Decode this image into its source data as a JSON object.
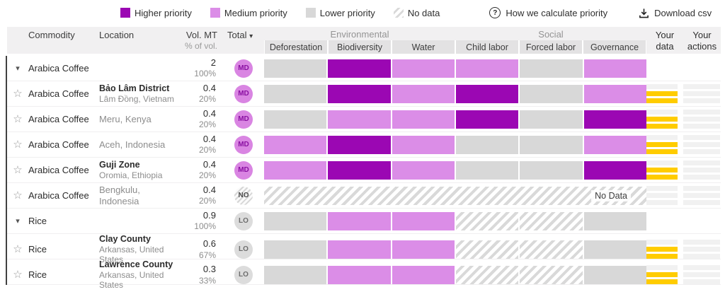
{
  "palette": {
    "higher": "#9b07b3",
    "medium": "#db8de7",
    "lower": "#d8d8d8",
    "your_data_yellow": "#ffcc00"
  },
  "legend": {
    "items": [
      {
        "type": "higher",
        "label": "Higher priority"
      },
      {
        "type": "medium",
        "label": "Medium priority"
      },
      {
        "type": "lower",
        "label": "Lower priority"
      },
      {
        "type": "nodata",
        "label": "No data"
      }
    ],
    "help_label": "How we calculate priority",
    "download_label": "Download csv"
  },
  "table": {
    "columns": {
      "commodity": "Commodity",
      "location": "Location",
      "volume": "Vol. MT",
      "volume_sub": "% of vol.",
      "total": "Total",
      "total_arrow": "▾",
      "your_data": "Your data",
      "your_actions": "Your actions"
    },
    "groups": [
      {
        "label": "Environmental",
        "subcolumns": [
          "Deforestation",
          "Biodiversity",
          "Water"
        ]
      },
      {
        "label": "Social",
        "subcolumns": [
          "Child labor",
          "Forced labor",
          "Governance"
        ]
      }
    ],
    "rows": [
      {
        "expander": "chevron",
        "commodity": "Arabica Coffee",
        "loc1": "",
        "loc2": "",
        "vol": "2",
        "pct": "100%",
        "badge": "MD",
        "segments": [
          "lower",
          "higher",
          "medium",
          "medium",
          "lower",
          "medium"
        ],
        "your_data": [],
        "your_actions": []
      },
      {
        "expander": "star",
        "commodity": "Arabica Coffee",
        "loc1": "Bảo Lâm District",
        "loc2": "Lâm Đồng, Vietnam",
        "vol": "0.4",
        "pct": "20%",
        "badge": "MD",
        "segments": [
          "lower",
          "higher",
          "medium",
          "higher",
          "lower",
          "medium"
        ],
        "your_data": [
          "grey",
          "yellow",
          "yellow"
        ],
        "your_actions": [
          "grey",
          "grey",
          "grey"
        ]
      },
      {
        "expander": "star",
        "commodity": "Arabica Coffee",
        "loc1": "",
        "loc2": "",
        "loc_single": "Meru, Kenya",
        "vol": "0.4",
        "pct": "20%",
        "badge": "MD",
        "segments": [
          "lower",
          "medium",
          "medium",
          "higher",
          "lower",
          "higher"
        ],
        "your_data": [
          "grey",
          "yellow",
          "yellow"
        ],
        "your_actions": [
          "grey",
          "grey",
          "grey"
        ]
      },
      {
        "expander": "star",
        "commodity": "Arabica Coffee",
        "loc1": "",
        "loc2": "",
        "loc_single": "Aceh, Indonesia",
        "vol": "0.4",
        "pct": "20%",
        "badge": "MD",
        "segments": [
          "medium",
          "higher",
          "medium",
          "lower",
          "lower",
          "medium"
        ],
        "your_data": [
          "grey",
          "yellow",
          "yellow"
        ],
        "your_actions": [
          "grey",
          "grey",
          "grey"
        ]
      },
      {
        "expander": "star",
        "commodity": "Arabica Coffee",
        "loc1": "Guji Zone",
        "loc2": "Oromia, Ethiopia",
        "vol": "0.4",
        "pct": "20%",
        "badge": "MD",
        "segments": [
          "medium",
          "higher",
          "medium",
          "lower",
          "lower",
          "higher"
        ],
        "your_data": [
          "grey",
          "yellow",
          "yellow"
        ],
        "your_actions": [
          "grey",
          "grey",
          "grey"
        ]
      },
      {
        "expander": "star",
        "commodity": "Arabica Coffee",
        "loc1": "",
        "loc2": "",
        "loc_single": "Bengkulu, Indonesia",
        "vol": "0.4",
        "pct": "20%",
        "badge": "NO",
        "segments": [
          "nodata",
          "nodata",
          "nodata",
          "nodata",
          "nodata",
          "nodata"
        ],
        "no_data_label": "No Data",
        "your_data": [
          "grey",
          "grey",
          "grey"
        ],
        "your_actions": [
          "grey",
          "grey",
          "grey"
        ]
      },
      {
        "expander": "chevron",
        "commodity": "Rice",
        "loc1": "",
        "loc2": "",
        "vol": "0.9",
        "pct": "100%",
        "badge": "LO",
        "segments": [
          "lower",
          "medium",
          "medium",
          "nodata",
          "nodata",
          "lower"
        ],
        "your_data": [],
        "your_actions": []
      },
      {
        "expander": "star",
        "commodity": "Rice",
        "loc1": "Clay County",
        "loc2": "Arkansas, United States",
        "vol": "0.6",
        "pct": "67%",
        "badge": "LO",
        "segments": [
          "lower",
          "medium",
          "medium",
          "nodata",
          "nodata",
          "lower"
        ],
        "your_data": [
          "grey",
          "yellow",
          "yellow"
        ],
        "your_actions": [
          "grey",
          "grey",
          "grey"
        ]
      },
      {
        "expander": "star",
        "commodity": "Rice",
        "loc1": "Lawrence County",
        "loc2": "Arkansas, United States",
        "vol": "0.3",
        "pct": "33%",
        "badge": "LO",
        "segments": [
          "lower",
          "medium",
          "medium",
          "nodata",
          "nodata",
          "lower"
        ],
        "your_data": [
          "grey",
          "yellow",
          "yellow"
        ],
        "your_actions": [
          "grey",
          "grey",
          "grey"
        ]
      }
    ]
  }
}
